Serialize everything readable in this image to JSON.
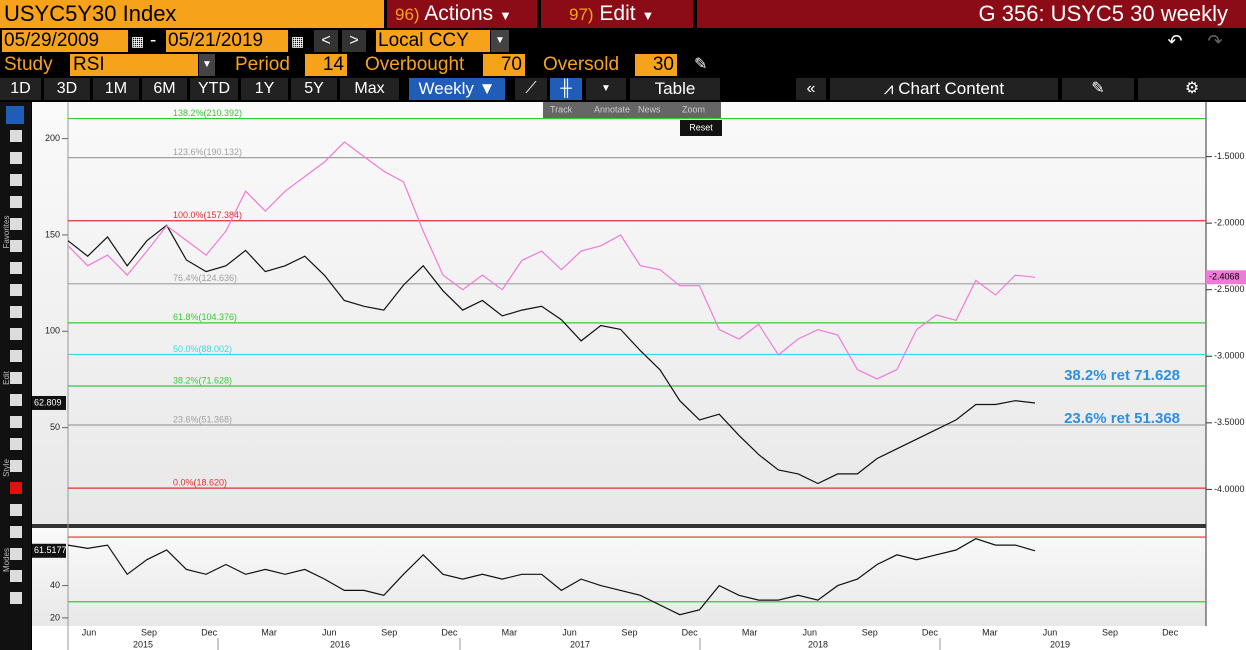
{
  "header": {
    "security": "USYC5Y30 Index",
    "actions_num": "96)",
    "actions": "Actions",
    "edit_num": "97)",
    "edit": "Edit",
    "function": "G 356: USYC5 30 weekly"
  },
  "dates": {
    "start": "05/29/2009",
    "sep": "-",
    "end": "05/21/2019",
    "currency": "Local CCY"
  },
  "study": {
    "label": "Study",
    "name": "RSI",
    "period_label": "Period",
    "period": "14",
    "overbought_label": "Overbought",
    "overbought": "70",
    "oversold_label": "Oversold",
    "oversold": "30"
  },
  "toolbar": {
    "periods": [
      "1D",
      "3D",
      "1M",
      "6M",
      "YTD",
      "1Y",
      "5Y",
      "Max"
    ],
    "frequency": "Weekly",
    "table": "Table",
    "chart_content": "Chart Content"
  },
  "chart_tools": [
    "Track",
    "Annotate",
    "News",
    "Zoom"
  ],
  "reset": "Reset",
  "side_labels": [
    "Favorites",
    "Edit",
    "Style",
    "Modes"
  ],
  "x_axis": {
    "months": [
      "Jun",
      "Sep",
      "Dec",
      "Mar",
      "Jun",
      "Sep",
      "Dec",
      "Mar",
      "Jun",
      "Sep",
      "Dec",
      "Mar",
      "Jun",
      "Sep",
      "Dec",
      "Mar",
      "Jun",
      "Sep",
      "Dec"
    ],
    "years": [
      "2015",
      "2016",
      "2017",
      "2018",
      "2019"
    ]
  },
  "chart_data": [
    {
      "type": "line",
      "ylim": [
        0,
        219
      ],
      "yticks": [
        50,
        100,
        150,
        200
      ],
      "y2lim": [
        -4.26,
        -1.09
      ],
      "y2ticks": [
        {
          "value": -1.5,
          "label": "-1.5000"
        },
        {
          "value": -2.0,
          "label": "-2.0000"
        },
        {
          "value": -2.5,
          "label": "-2.5000"
        },
        {
          "value": -3.0,
          "label": "-3.0000"
        },
        {
          "value": -3.5,
          "label": "-3.5000"
        },
        {
          "value": -4.0,
          "label": "-4.0000"
        }
      ],
      "series": [
        {
          "name": "USYC5Y30 Index",
          "color": "#111111",
          "last_label": "62.809",
          "values": [
            147,
            139,
            149,
            134,
            147,
            155,
            137,
            131,
            134,
            142,
            131,
            134,
            139,
            129,
            116,
            113,
            111,
            124,
            134,
            121,
            111,
            116,
            108,
            111,
            113,
            106,
            95,
            103,
            101,
            90,
            80,
            64,
            54,
            57,
            46,
            36,
            28,
            26,
            21,
            26,
            26,
            34,
            39,
            44,
            49,
            54,
            62,
            62,
            64,
            62.809
          ]
        },
        {
          "name": "USYC5Y30 Index",
          "color": "#f07ad8",
          "axis": "y2",
          "last_label": "-2.4068",
          "values": [
            -2.17,
            -2.32,
            -2.24,
            -2.39,
            -2.21,
            -2.02,
            -2.13,
            -2.24,
            -2.06,
            -1.76,
            -1.91,
            -1.76,
            -1.65,
            -1.54,
            -1.39,
            -1.5,
            -1.61,
            -1.69,
            -2.06,
            -2.39,
            -2.5,
            -2.39,
            -2.5,
            -2.28,
            -2.21,
            -2.35,
            -2.21,
            -2.17,
            -2.09,
            -2.32,
            -2.35,
            -2.47,
            -2.47,
            -2.8,
            -2.87,
            -2.76,
            -2.99,
            -2.87,
            -2.8,
            -2.84,
            -3.1,
            -3.17,
            -3.1,
            -2.8,
            -2.69,
            -2.73,
            -2.43,
            -2.54,
            -2.39,
            -2.4068
          ]
        }
      ],
      "levels": [
        {
          "label": "138.2%(210.392)",
          "value": 210.392,
          "color": "#33cc33"
        },
        {
          "label": "123.6%(190.132)",
          "value": 190.132,
          "color": "#a0a0a0"
        },
        {
          "label": "100.0%(157.384)",
          "value": 157.384,
          "color": "#e03030"
        },
        {
          "label": "76.4%(124.636)",
          "value": 124.636,
          "color": "#a0a0a0"
        },
        {
          "label": "61.8%(104.376)",
          "value": 104.376,
          "color": "#33cc33"
        },
        {
          "label": "50.0%(88.002)",
          "value": 88.002,
          "color": "#33dddd"
        },
        {
          "label": "38.2%(71.628)",
          "value": 71.628,
          "color": "#33cc33"
        },
        {
          "label": "23.6%(51.368)",
          "value": 51.368,
          "color": "#a0a0a0"
        },
        {
          "label": "0.0%(18.620)",
          "value": 18.62,
          "color": "#e03030"
        }
      ],
      "annotations": [
        {
          "text": "38.2% ret 71.628",
          "value": 71.628
        },
        {
          "text": "23.6% ret 51.368",
          "value": 51.368
        }
      ]
    },
    {
      "type": "line",
      "ylim": [
        15,
        75.6
      ],
      "yticks": [
        20,
        40
      ],
      "series": [
        {
          "name": "RSI",
          "color": "#111111",
          "last_label": "61.5177",
          "values": [
            65,
            63,
            65,
            47,
            56,
            62,
            50,
            47,
            53,
            47,
            50,
            47,
            50,
            44,
            37,
            37,
            34,
            47,
            59,
            47,
            44,
            47,
            44,
            47,
            47,
            37,
            44,
            40,
            37,
            34,
            28,
            22,
            25,
            40,
            34,
            31,
            31,
            34,
            31,
            40,
            44,
            53,
            59,
            56,
            59,
            62,
            69,
            65,
            65,
            61.5177
          ]
        }
      ],
      "levels": [
        {
          "value": 70,
          "color": "#e03030"
        },
        {
          "value": 30,
          "color": "#33cc33"
        }
      ]
    }
  ]
}
